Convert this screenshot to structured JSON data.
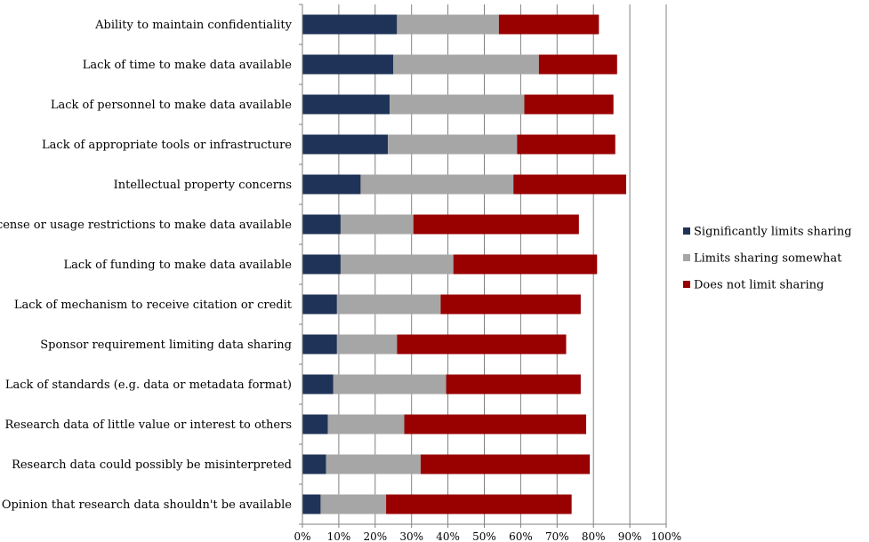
{
  "chart_data": {
    "type": "bar",
    "orientation": "horizontal",
    "stacked": true,
    "categories": [
      "Ability to maintain confidentiality",
      "Lack of time to make data available",
      "Lack of personnel to make data available",
      "Lack of appropriate tools or infrastructure",
      "Intellectual property concerns",
      "License or usage restrictions to make data available",
      "Lack of funding to make data available",
      "Lack of mechanism to receive citation or credit",
      "Sponsor requirement limiting data sharing",
      "Lack of standards (e.g. data or metadata format)",
      "Research data of little value or interest to others",
      "Research data could possibly be misinterpreted",
      "Opinion that research data shouldn't be available"
    ],
    "series": [
      {
        "name": "Significantly limits sharing",
        "color": "#1f3358",
        "values": [
          26,
          25,
          24,
          23.5,
          16,
          10.5,
          10.5,
          9.5,
          9.5,
          8.5,
          7,
          6.5,
          5
        ]
      },
      {
        "name": "Limits sharing somewhat",
        "color": "#a6a6a6",
        "values": [
          28,
          40,
          37,
          35.5,
          42,
          20,
          31,
          28.5,
          16.5,
          31,
          21,
          26,
          18
        ]
      },
      {
        "name": "Does not limit sharing",
        "color": "#990000",
        "values": [
          27.5,
          21.5,
          24.5,
          27,
          31,
          45.5,
          39.5,
          38.5,
          46.5,
          37,
          50,
          46.5,
          51
        ]
      }
    ],
    "xlim": [
      0,
      100
    ],
    "xticks": [
      "0%",
      "10%",
      "20%",
      "30%",
      "40%",
      "50%",
      "60%",
      "70%",
      "80%",
      "90%",
      "100%"
    ],
    "grid": true,
    "legend_position": "right"
  }
}
